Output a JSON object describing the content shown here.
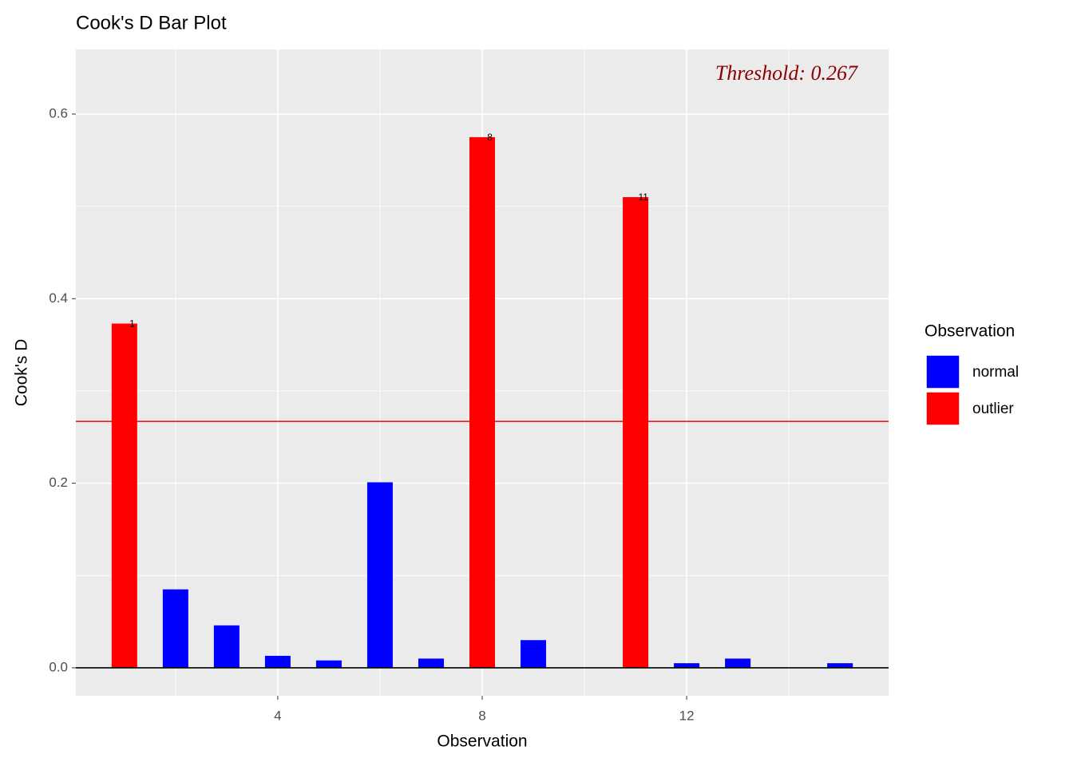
{
  "chart_data": {
    "type": "bar",
    "title": "Cook's D Bar Plot",
    "x_label": "Observation",
    "y_label": "Cook's D",
    "legend_title": "Observation",
    "x": [
      1,
      2,
      3,
      4,
      5,
      6,
      7,
      8,
      9,
      10,
      11,
      12,
      13,
      14,
      15
    ],
    "series": [
      {
        "name": "normal",
        "color": "#0000ff",
        "values": [
          null,
          0.085,
          0.046,
          0.013,
          0.008,
          0.201,
          0.01,
          null,
          0.03,
          0,
          null,
          0.005,
          0.01,
          0,
          0.005
        ]
      },
      {
        "name": "outlier",
        "color": "#ff0000",
        "values": [
          0.373,
          null,
          null,
          null,
          null,
          null,
          null,
          0.575,
          null,
          null,
          0.51,
          null,
          null,
          null,
          null
        ],
        "labels": [
          "1",
          null,
          null,
          null,
          null,
          null,
          null,
          "8",
          null,
          null,
          "11",
          null,
          null,
          null,
          null
        ]
      }
    ],
    "threshold": 0.267,
    "threshold_label": "Threshold: 0.267",
    "threshold_color": "#ff0000",
    "xlim": [
      0.05,
      15.95
    ],
    "ylim": [
      -0.0303,
      0.67
    ],
    "xticks": [
      4,
      8,
      12
    ],
    "xminor": [
      2,
      6,
      10,
      14
    ],
    "yticks": [
      {
        "value": 0,
        "label": "0.0"
      },
      0.2,
      0.4,
      0.6
    ],
    "yminor": [
      0.1,
      0.3,
      0.5
    ],
    "grid": true,
    "legend": "right",
    "zero_line": true
  }
}
